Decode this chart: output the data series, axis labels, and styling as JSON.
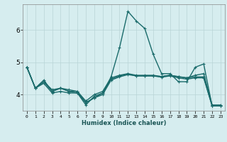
{
  "xlabel": "Humidex (Indice chaleur)",
  "xlim": [
    -0.5,
    23.5
  ],
  "ylim": [
    3.5,
    6.8
  ],
  "yticks": [
    4,
    5,
    6
  ],
  "xticks": [
    0,
    1,
    2,
    3,
    4,
    5,
    6,
    7,
    8,
    9,
    10,
    11,
    12,
    13,
    14,
    15,
    16,
    17,
    18,
    19,
    20,
    21,
    22,
    23
  ],
  "bg_color": "#d6edef",
  "grid_color": "#b8d4d6",
  "line_color": "#1a6b6b",
  "line_width": 1.0,
  "marker_size": 2.5,
  "curves": [
    [
      4.85,
      4.2,
      4.4,
      4.1,
      4.2,
      4.1,
      4.05,
      3.68,
      3.95,
      4.05,
      4.55,
      5.45,
      6.58,
      6.28,
      6.05,
      5.25,
      4.65,
      4.65,
      4.4,
      4.4,
      4.85,
      4.95,
      3.65,
      3.65
    ],
    [
      4.85,
      4.2,
      4.35,
      4.05,
      4.1,
      4.05,
      4.05,
      3.75,
      3.9,
      4.0,
      4.45,
      4.55,
      4.62,
      4.58,
      4.58,
      4.58,
      4.56,
      4.6,
      4.55,
      4.52,
      4.6,
      4.65,
      3.68,
      3.68
    ],
    [
      4.85,
      4.2,
      4.4,
      4.15,
      4.2,
      4.15,
      4.1,
      3.8,
      4.0,
      4.1,
      4.52,
      4.6,
      4.65,
      4.6,
      4.6,
      4.6,
      4.56,
      4.6,
      4.56,
      4.52,
      4.55,
      4.55,
      3.65,
      3.65
    ],
    [
      4.85,
      4.2,
      4.45,
      4.1,
      4.2,
      4.1,
      4.1,
      3.75,
      3.9,
      4.05,
      4.48,
      4.58,
      4.64,
      4.58,
      4.58,
      4.58,
      4.54,
      4.58,
      4.52,
      4.48,
      4.52,
      4.52,
      3.65,
      3.65
    ]
  ]
}
